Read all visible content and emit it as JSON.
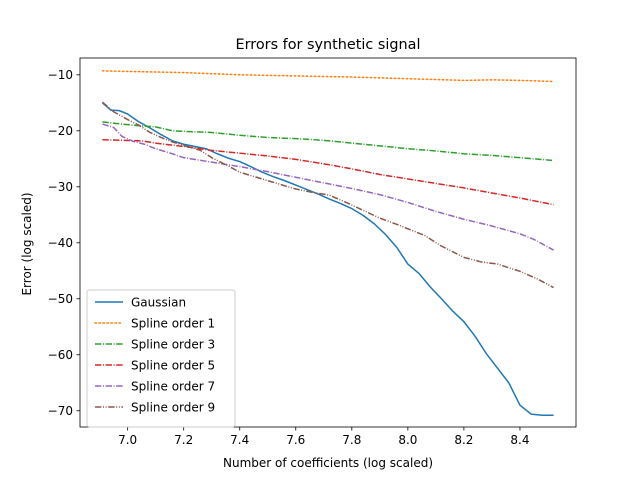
{
  "chart_data": {
    "type": "line",
    "title": "Errors for synthetic signal",
    "xlabel": "Number of coefficients (log scaled)",
    "ylabel": "Error (log scaled)",
    "xlim": [
      6.83,
      8.6
    ],
    "ylim": [
      -72.9,
      -7.0
    ],
    "x_ticks": [
      7.0,
      7.2,
      7.4,
      7.6,
      7.8,
      8.0,
      8.2,
      8.4
    ],
    "x_tick_labels": [
      "7.0",
      "7.2",
      "7.4",
      "7.6",
      "7.8",
      "8.0",
      "8.2",
      "8.4"
    ],
    "y_ticks": [
      -10,
      -20,
      -30,
      -40,
      -50,
      -60,
      -70
    ],
    "y_tick_labels": [
      "−10",
      "−20",
      "−30",
      "−40",
      "−50",
      "−60",
      "−70"
    ],
    "grid": false,
    "legend_position": "lower-left",
    "series": [
      {
        "name": "Gaussian",
        "color": "#1f77b4",
        "dash": "solid",
        "points": [
          [
            6.91,
            -15.0
          ],
          [
            6.94,
            -16.3
          ],
          [
            6.97,
            -16.4
          ],
          [
            7.0,
            -17.0
          ],
          [
            7.04,
            -18.4
          ],
          [
            7.08,
            -19.5
          ],
          [
            7.12,
            -20.7
          ],
          [
            7.16,
            -21.8
          ],
          [
            7.2,
            -22.4
          ],
          [
            7.24,
            -22.8
          ],
          [
            7.28,
            -23.2
          ],
          [
            7.32,
            -24.1
          ],
          [
            7.36,
            -24.9
          ],
          [
            7.4,
            -25.5
          ],
          [
            7.44,
            -26.4
          ],
          [
            7.48,
            -27.4
          ],
          [
            7.52,
            -28.2
          ],
          [
            7.56,
            -28.9
          ],
          [
            7.6,
            -29.7
          ],
          [
            7.64,
            -30.5
          ],
          [
            7.68,
            -31.3
          ],
          [
            7.72,
            -32.2
          ],
          [
            7.76,
            -33.0
          ],
          [
            7.8,
            -33.9
          ],
          [
            7.84,
            -35.1
          ],
          [
            7.88,
            -36.6
          ],
          [
            7.92,
            -38.5
          ],
          [
            7.96,
            -40.8
          ],
          [
            8.0,
            -43.8
          ],
          [
            8.04,
            -45.5
          ],
          [
            8.08,
            -47.9
          ],
          [
            8.12,
            -50.0
          ],
          [
            8.16,
            -52.2
          ],
          [
            8.2,
            -54.1
          ],
          [
            8.24,
            -56.7
          ],
          [
            8.28,
            -59.8
          ],
          [
            8.32,
            -62.4
          ],
          [
            8.36,
            -65.0
          ],
          [
            8.4,
            -69.0
          ],
          [
            8.44,
            -70.6
          ],
          [
            8.48,
            -70.8
          ],
          [
            8.52,
            -70.8
          ]
        ]
      },
      {
        "name": "Spline order 1",
        "color": "#ff7f0e",
        "dash": "dotted",
        "points": [
          [
            6.91,
            -9.3
          ],
          [
            7.0,
            -9.4
          ],
          [
            7.2,
            -9.6
          ],
          [
            7.4,
            -10.0
          ],
          [
            7.6,
            -10.2
          ],
          [
            7.8,
            -10.4
          ],
          [
            8.0,
            -10.7
          ],
          [
            8.2,
            -11.0
          ],
          [
            8.3,
            -10.9
          ],
          [
            8.4,
            -11.0
          ],
          [
            8.52,
            -11.2
          ]
        ]
      },
      {
        "name": "Spline order 3",
        "color": "#2ca02c",
        "dash": "dashdot",
        "points": [
          [
            6.91,
            -18.4
          ],
          [
            6.96,
            -18.7
          ],
          [
            7.0,
            -18.9
          ],
          [
            7.04,
            -19.1
          ],
          [
            7.1,
            -19.3
          ],
          [
            7.16,
            -20.0
          ],
          [
            7.2,
            -20.1
          ],
          [
            7.3,
            -20.3
          ],
          [
            7.4,
            -20.8
          ],
          [
            7.5,
            -21.2
          ],
          [
            7.6,
            -21.4
          ],
          [
            7.7,
            -21.7
          ],
          [
            7.8,
            -22.2
          ],
          [
            7.9,
            -22.7
          ],
          [
            8.0,
            -23.2
          ],
          [
            8.1,
            -23.6
          ],
          [
            8.2,
            -24.1
          ],
          [
            8.3,
            -24.4
          ],
          [
            8.4,
            -24.8
          ],
          [
            8.52,
            -25.3
          ]
        ]
      },
      {
        "name": "Spline order 5",
        "color": "#d62728",
        "dash": "dashdot",
        "points": [
          [
            6.91,
            -21.6
          ],
          [
            6.98,
            -21.7
          ],
          [
            7.05,
            -21.8
          ],
          [
            7.1,
            -22.2
          ],
          [
            7.2,
            -22.8
          ],
          [
            7.3,
            -23.5
          ],
          [
            7.4,
            -24.0
          ],
          [
            7.5,
            -24.5
          ],
          [
            7.6,
            -25.1
          ],
          [
            7.7,
            -25.9
          ],
          [
            7.8,
            -26.8
          ],
          [
            7.9,
            -27.8
          ],
          [
            8.0,
            -28.6
          ],
          [
            8.1,
            -29.4
          ],
          [
            8.2,
            -30.2
          ],
          [
            8.3,
            -31.1
          ],
          [
            8.4,
            -32.0
          ],
          [
            8.52,
            -33.2
          ]
        ]
      },
      {
        "name": "Spline order 7",
        "color": "#9467bd",
        "dash": "dashdot",
        "points": [
          [
            6.91,
            -18.8
          ],
          [
            6.95,
            -19.4
          ],
          [
            6.98,
            -21.0
          ],
          [
            7.02,
            -21.9
          ],
          [
            7.06,
            -22.4
          ],
          [
            7.1,
            -23.2
          ],
          [
            7.16,
            -24.1
          ],
          [
            7.2,
            -24.8
          ],
          [
            7.3,
            -25.6
          ],
          [
            7.4,
            -26.4
          ],
          [
            7.5,
            -27.3
          ],
          [
            7.6,
            -28.3
          ],
          [
            7.7,
            -29.3
          ],
          [
            7.8,
            -30.3
          ],
          [
            7.9,
            -31.4
          ],
          [
            8.0,
            -32.8
          ],
          [
            8.1,
            -34.4
          ],
          [
            8.2,
            -35.8
          ],
          [
            8.3,
            -37.0
          ],
          [
            8.4,
            -38.4
          ],
          [
            8.45,
            -39.4
          ],
          [
            8.52,
            -41.3
          ]
        ]
      },
      {
        "name": "Spline order 9",
        "color": "#8c564b",
        "dash": "dashdotdot",
        "points": [
          [
            6.91,
            -14.9
          ],
          [
            6.95,
            -16.6
          ],
          [
            7.0,
            -18.0
          ],
          [
            7.04,
            -19.0
          ],
          [
            7.08,
            -20.3
          ],
          [
            7.12,
            -21.2
          ],
          [
            7.16,
            -22.0
          ],
          [
            7.2,
            -22.6
          ],
          [
            7.26,
            -23.5
          ],
          [
            7.3,
            -24.8
          ],
          [
            7.36,
            -26.3
          ],
          [
            7.4,
            -27.4
          ],
          [
            7.46,
            -28.3
          ],
          [
            7.5,
            -28.9
          ],
          [
            7.56,
            -29.8
          ],
          [
            7.6,
            -30.4
          ],
          [
            7.66,
            -31.0
          ],
          [
            7.72,
            -31.5
          ],
          [
            7.78,
            -32.8
          ],
          [
            7.84,
            -34.2
          ],
          [
            7.9,
            -35.6
          ],
          [
            7.96,
            -36.7
          ],
          [
            8.0,
            -37.5
          ],
          [
            8.06,
            -38.7
          ],
          [
            8.12,
            -40.6
          ],
          [
            8.2,
            -42.6
          ],
          [
            8.26,
            -43.4
          ],
          [
            8.32,
            -43.8
          ],
          [
            8.4,
            -45.1
          ],
          [
            8.46,
            -46.4
          ],
          [
            8.52,
            -48.0
          ]
        ]
      }
    ]
  }
}
